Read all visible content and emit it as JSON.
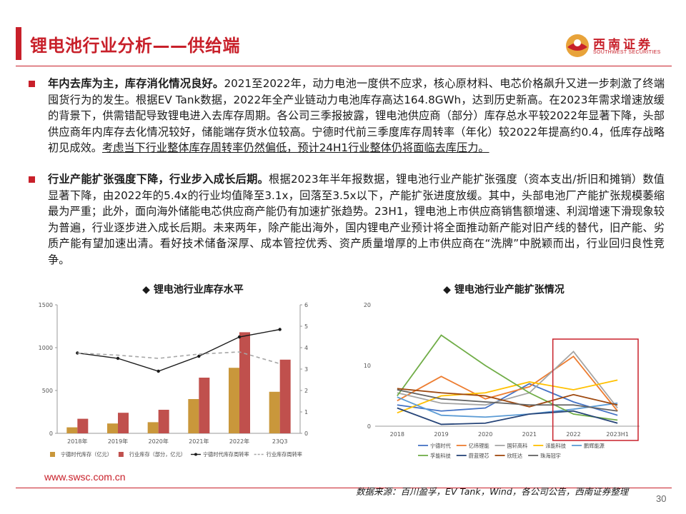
{
  "header": {
    "title": "锂电池行业分析——供给端",
    "logo_name": "西南证券",
    "logo_sub": "SOUTHWEST SECURITIES"
  },
  "bullets": [
    {
      "bold": "年内去库为主，库存消化情况良好。",
      "text": "2021至2022年，动力电池一度供不应求，核心原材料、电芯价格飙升又进一步刺激了终端囤货行为的发生。根据EV Tank数据，2022年全产业链动力电池库存高达164.8GWh，达到历史新高。在2023年需求增速放缓的背景下，供需错配导致锂电进入去库存周期。各公司三季报披露，锂电池供应商（部分）库存总水平较2022年显著下降，头部供应商年内库存去化情况较好，储能端存货水位较高。宁德时代前三季度库存周转率（年化）较2022年提高约0.4，低库存战略初见成效。",
      "underline": "考虑当下行业整体库存周转率仍然偏低，预计24H1行业整体仍将面临去库压力。"
    },
    {
      "bold": "行业产能扩张强度下降，行业步入成长后期。",
      "text": "根据2023年半年报数据，锂电池行业产能扩张强度（资本支出/折旧和摊销）数值显著下降，由2022年的5.4x的行业均值降至3.1x，回落至3.5x以下，产能扩张进度放缓。其中，头部电池厂产能扩张规模萎缩最为严重；此外，面向海外储能电芯供应商产能仍有加速扩张趋势。23H1，锂电池上市供应商销售额增速、利润增速下滑现象较为普遍，行业逐步进入成长后期。未来两年，除产能出海外，国内锂电产业预计将全面推动新产能对旧产线的替代，旧产能、劣质产能有望加速出清。看好技术储备深厚、成本管控优秀、资产质量增厚的上市供应商在“洗牌”中脱颖而出，行业回归良性竞争。",
      "underline": ""
    }
  ],
  "chart_data": [
    {
      "type": "bar",
      "title": "◆ 锂电池行业库存水平",
      "categories": [
        "2018年",
        "2019年",
        "2020年",
        "2021年",
        "2022年",
        "23Q3"
      ],
      "ylim": [
        0,
        1500
      ],
      "yticks": [
        "0",
        "500",
        "1000",
        "1500"
      ],
      "y2lim": [
        0,
        6
      ],
      "y2ticks": [
        "0",
        "1",
        "2",
        "3",
        "4",
        "5",
        "6"
      ],
      "series": [
        {
          "name": "宁德时代库存（亿元）",
          "kind": "bar",
          "color": "#c9973b",
          "values": [
            70,
            115,
            130,
            400,
            765,
            485
          ]
        },
        {
          "name": "行业库存（部分，亿元）",
          "kind": "bar",
          "color": "#c0504d",
          "values": [
            170,
            240,
            275,
            650,
            1180,
            860
          ]
        },
        {
          "name": "宁德时代库存周转率",
          "kind": "line",
          "axis": "right",
          "color": "#1a1a1a",
          "values": [
            3.75,
            3.5,
            2.9,
            3.6,
            4.5,
            4.85
          ]
        },
        {
          "name": "行业库存周转率",
          "kind": "dashed",
          "axis": "right",
          "color": "#a6a6a6",
          "values": [
            3.75,
            3.65,
            3.5,
            3.7,
            3.8,
            3.25
          ]
        }
      ]
    },
    {
      "type": "line",
      "title": "◆ 锂电池行业产能扩张情况",
      "categories": [
        "2018",
        "2019",
        "2020",
        "2021",
        "2022",
        "2023H1"
      ],
      "ylim": [
        0,
        20
      ],
      "yticks": [
        "0",
        "10",
        "20"
      ],
      "series": [
        {
          "name": "宁德时代",
          "color": "#4472c4",
          "values": [
            3.5,
            2.5,
            3.0,
            7.0,
            4.0,
            1.8
          ]
        },
        {
          "name": "亿纬锂能",
          "color": "#ed7d31",
          "values": [
            4.2,
            8.2,
            4.5,
            6.5,
            11.5,
            2.5
          ]
        },
        {
          "name": "国轩高科",
          "color": "#a5a5a5",
          "values": [
            5.5,
            3.8,
            3.5,
            5.5,
            12.3,
            3.0
          ]
        },
        {
          "name": "派能科技",
          "color": "#ffc000",
          "values": [
            2.2,
            5.0,
            5.5,
            7.3,
            6.0,
            7.6
          ]
        },
        {
          "name": "鹏辉能源",
          "color": "#5b9bd5",
          "values": [
            4.8,
            1.8,
            1.5,
            2.0,
            2.8,
            3.8
          ]
        },
        {
          "name": "孚能科技",
          "color": "#70ad47",
          "values": [
            5.0,
            15.0,
            10.0,
            5.5,
            2.0,
            1.0
          ]
        },
        {
          "name": "蔚蓝锂芯",
          "color": "#264478",
          "values": [
            3.0,
            0.3,
            0.5,
            2.0,
            2.5,
            0.5
          ]
        },
        {
          "name": "欣旺达",
          "color": "#9e480e",
          "values": [
            6.2,
            5.5,
            5.0,
            3.2,
            5.2,
            3.5
          ]
        },
        {
          "name": "珠海冠宇",
          "color": "#636363",
          "values": [
            6.0,
            4.5,
            4.0,
            3.5,
            3.5,
            2.5
          ]
        }
      ],
      "highlight": [
        "2022",
        "2023H1"
      ]
    }
  ],
  "footer": {
    "url": "www.swsc.com.cn",
    "source": "数据来源：百川盈孚，EV Tank，Wind，各公司公告，西南证券整理",
    "page": "30"
  }
}
